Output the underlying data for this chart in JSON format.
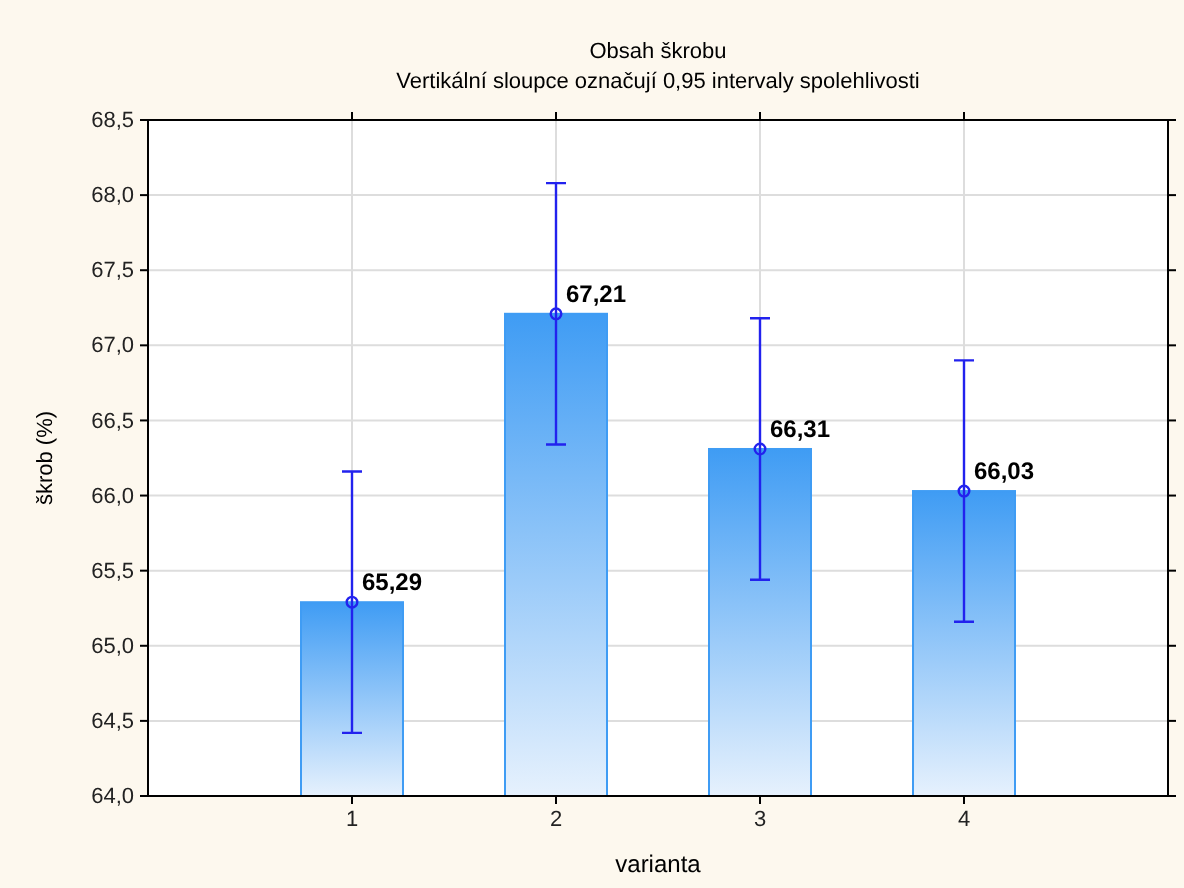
{
  "chart_data": {
    "type": "bar",
    "title": "Obsah škrobu",
    "subtitle": "Vertikální sloupce označují 0,95 intervaly spolehlivosti",
    "xlabel": "varianta",
    "ylabel": "škrob (%)",
    "categories": [
      "1",
      "2",
      "3",
      "4"
    ],
    "series": [
      {
        "color": "#3f9cf4",
        "values": [
          65.29,
          67.21,
          66.31,
          66.03
        ],
        "value_labels": [
          "65,29",
          "67,21",
          "66,31",
          "66,03"
        ],
        "errors": [
          [
            64.42,
            66.16
          ],
          [
            66.34,
            68.08
          ],
          [
            65.44,
            67.18
          ],
          [
            65.16,
            66.9
          ]
        ]
      },
      {
        "type": "scatter",
        "color": "#2222ee",
        "x": [
          "1",
          "2",
          "3",
          "4"
        ],
        "values": [
          65.29,
          67.21,
          66.31,
          66.03
        ]
      }
    ],
    "marker": "circle",
    "grid": true,
    "ylim": [
      64,
      68.5
    ],
    "yticks": [
      {
        "value": 64,
        "label": "64,0"
      },
      {
        "value": 64.5,
        "label": "64,5"
      },
      {
        "value": 65,
        "label": "65,0"
      },
      {
        "value": 65.5,
        "label": "65,5"
      },
      {
        "value": 66,
        "label": "66,0"
      },
      {
        "value": 66.5,
        "label": "66,5"
      },
      {
        "value": 67,
        "label": "67,0"
      },
      {
        "value": 67.5,
        "label": "67,5"
      },
      {
        "value": 68,
        "label": "68,0"
      },
      {
        "value": 68.5,
        "label": "68,5"
      }
    ]
  }
}
